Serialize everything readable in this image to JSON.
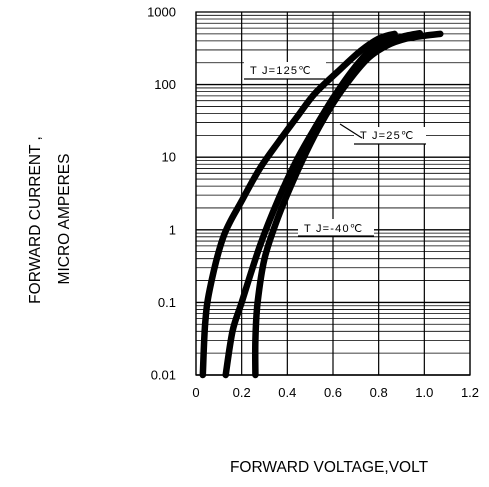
{
  "chart_data": {
    "type": "line",
    "title": "",
    "xlabel": "FORWARD VOLTAGE,VOLT",
    "ylabel_lines": [
      "FORWARD CURRENT ,",
      "MICRO AMPERES"
    ],
    "x_scale": "linear",
    "y_scale": "log",
    "xlim": [
      0,
      1.2
    ],
    "ylim": [
      0.01,
      1000
    ],
    "x_ticks": [
      "0",
      "0.2",
      "0.4",
      "0.6",
      "0.8",
      "1.0",
      "1.2"
    ],
    "y_ticks": [
      "0.01",
      "0.1",
      "1",
      "10",
      "100",
      "1000"
    ],
    "grid": true,
    "legend": "none",
    "series": [
      {
        "name": "TJ=125℃",
        "x": [
          0.03,
          0.04,
          0.06,
          0.12,
          0.2,
          0.28,
          0.36,
          0.44,
          0.52,
          0.62,
          0.72,
          0.8,
          0.87
        ],
        "y": [
          0.01,
          0.05,
          0.15,
          0.8,
          2.5,
          7,
          16,
          35,
          75,
          150,
          290,
          430,
          500
        ]
      },
      {
        "name": "TJ=25℃",
        "x": [
          0.13,
          0.16,
          0.2,
          0.28,
          0.36,
          0.44,
          0.52,
          0.6,
          0.68,
          0.76,
          0.84,
          0.92,
          0.98
        ],
        "y": [
          0.01,
          0.04,
          0.1,
          0.6,
          2.6,
          9,
          25,
          65,
          150,
          290,
          400,
          470,
          510
        ]
      },
      {
        "name": "TJ=-40℃",
        "x": [
          0.26,
          0.26,
          0.27,
          0.3,
          0.36,
          0.44,
          0.52,
          0.6,
          0.68,
          0.76,
          0.84,
          0.92,
          1.0,
          1.07
        ],
        "y": [
          0.01,
          0.03,
          0.1,
          0.4,
          1.5,
          6,
          20,
          55,
          125,
          240,
          350,
          430,
          470,
          500
        ]
      }
    ],
    "annotations": [
      {
        "text": "T J=125℃",
        "series": "TJ=125℃"
      },
      {
        "text": "T J=25℃",
        "series": "TJ=25℃"
      },
      {
        "text": "T J=-40℃",
        "series": "TJ=-40℃"
      }
    ]
  }
}
